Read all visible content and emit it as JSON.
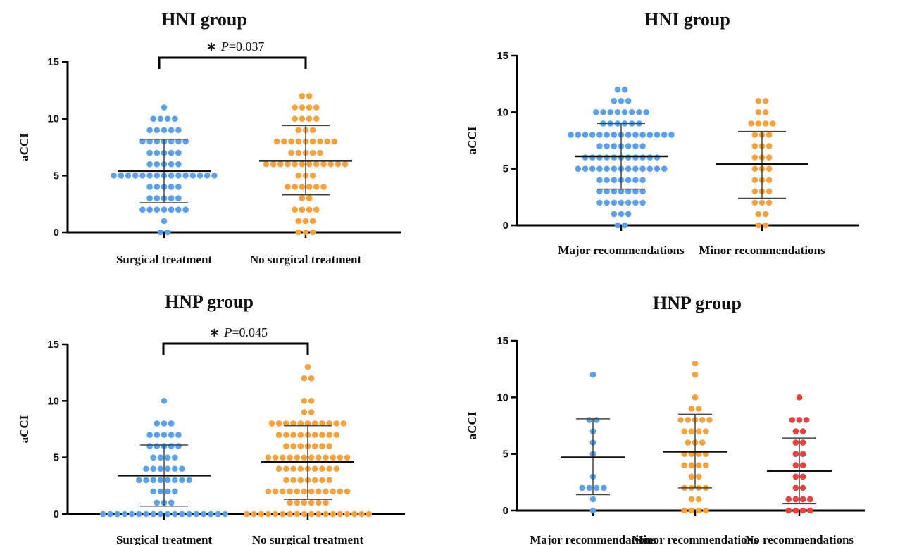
{
  "chart_data": [
    {
      "type": "scatter",
      "title": "HNI group",
      "ylabel": "aCCI",
      "ylim": [
        0,
        15
      ],
      "yticks": [
        "0",
        "5",
        "10",
        "15"
      ],
      "categories": [
        "Surgical treatment",
        "No surgical treatment"
      ],
      "annotation": {
        "star": "∗",
        "p_label": "P",
        "p_value": "=0.037"
      },
      "series": [
        {
          "color": "#5aa0ec",
          "mean": 5.4,
          "sd_low": 2.6,
          "sd_high": 8.2,
          "values": [
            0,
            0,
            1,
            2,
            2,
            2,
            2,
            2,
            2,
            2,
            3,
            3,
            3,
            3,
            3,
            4,
            4,
            4,
            4,
            4,
            5,
            5,
            5,
            5,
            5,
            5,
            5,
            5,
            5,
            5,
            5,
            5,
            5,
            5,
            5,
            6,
            6,
            6,
            6,
            6,
            7,
            7,
            7,
            7,
            7,
            8,
            8,
            8,
            8,
            8,
            8,
            8,
            9,
            9,
            9,
            9,
            9,
            10,
            10,
            10,
            10,
            11
          ]
        },
        {
          "color": "#f5a23e",
          "mean": 6.3,
          "sd_low": 3.3,
          "sd_high": 9.4,
          "values": [
            0,
            0,
            0,
            1,
            1,
            1,
            2,
            2,
            2,
            2,
            3,
            3,
            4,
            4,
            4,
            4,
            4,
            4,
            5,
            5,
            5,
            6,
            6,
            6,
            6,
            6,
            6,
            6,
            6,
            6,
            6,
            6,
            6,
            7,
            7,
            7,
            7,
            7,
            8,
            8,
            8,
            8,
            8,
            8,
            8,
            8,
            8,
            9,
            9,
            9,
            10,
            10,
            10,
            10,
            11,
            11,
            11,
            11,
            12,
            12
          ]
        }
      ]
    },
    {
      "type": "scatter",
      "title": "HNI group",
      "ylabel": "aCCI",
      "ylim": [
        0,
        15
      ],
      "yticks": [
        "0",
        "5",
        "10",
        "15"
      ],
      "categories": [
        "Major recommendations",
        "Minor recommendations"
      ],
      "series": [
        {
          "color": "#5aa0ec",
          "mean": 6.1,
          "sd_low": 3.2,
          "sd_high": 9.0,
          "values": [
            0,
            0,
            1,
            1,
            1,
            2,
            2,
            2,
            2,
            2,
            2,
            2,
            3,
            3,
            3,
            3,
            3,
            3,
            3,
            4,
            4,
            4,
            4,
            4,
            4,
            4,
            5,
            5,
            5,
            5,
            5,
            5,
            5,
            5,
            5,
            5,
            5,
            5,
            5,
            6,
            6,
            6,
            6,
            6,
            6,
            6,
            6,
            6,
            6,
            6,
            7,
            7,
            7,
            7,
            7,
            7,
            7,
            8,
            8,
            8,
            8,
            8,
            8,
            8,
            8,
            8,
            8,
            8,
            8,
            8,
            8,
            8,
            9,
            9,
            9,
            9,
            9,
            9,
            10,
            10,
            10,
            10,
            10,
            10,
            10,
            10,
            11,
            11,
            11,
            12,
            12
          ]
        },
        {
          "color": "#f5a23e",
          "mean": 5.4,
          "sd_low": 2.4,
          "sd_high": 8.3,
          "values": [
            0,
            0,
            1,
            1,
            2,
            2,
            2,
            3,
            3,
            3,
            4,
            4,
            4,
            5,
            5,
            5,
            6,
            6,
            6,
            7,
            7,
            7,
            8,
            8,
            8,
            9,
            9,
            9,
            9,
            10,
            10,
            11,
            11
          ]
        }
      ]
    },
    {
      "type": "scatter",
      "title": "HNP group",
      "ylabel": "aCCI",
      "ylim": [
        0,
        15
      ],
      "yticks": [
        "0",
        "5",
        "10",
        "15"
      ],
      "categories": [
        "Surgical treatment",
        "No surgical treatment"
      ],
      "annotation": {
        "star": "∗",
        "p_label": "P",
        "p_value": "=0.045"
      },
      "series": [
        {
          "color": "#5aa0ec",
          "mean": 3.4,
          "sd_low": 0.7,
          "sd_high": 6.1,
          "values": [
            0,
            0,
            0,
            0,
            0,
            0,
            0,
            0,
            0,
            0,
            0,
            0,
            0,
            0,
            0,
            0,
            0,
            0,
            1,
            1,
            1,
            2,
            2,
            2,
            2,
            3,
            3,
            3,
            3,
            3,
            3,
            3,
            3,
            4,
            4,
            4,
            4,
            4,
            4,
            5,
            5,
            5,
            5,
            6,
            6,
            6,
            6,
            6,
            7,
            7,
            7,
            7,
            7,
            8,
            8,
            8,
            10
          ]
        },
        {
          "color": "#f5a23e",
          "mean": 4.6,
          "sd_low": 1.3,
          "sd_high": 7.8,
          "values": [
            0,
            0,
            0,
            0,
            0,
            0,
            0,
            0,
            0,
            0,
            0,
            0,
            0,
            0,
            0,
            0,
            0,
            0,
            1,
            1,
            1,
            1,
            1,
            1,
            2,
            2,
            2,
            2,
            2,
            2,
            2,
            2,
            2,
            2,
            2,
            2,
            3,
            3,
            3,
            3,
            3,
            3,
            3,
            4,
            4,
            4,
            4,
            4,
            4,
            4,
            4,
            4,
            5,
            5,
            5,
            5,
            5,
            5,
            5,
            5,
            5,
            5,
            5,
            5,
            6,
            6,
            6,
            6,
            6,
            6,
            6,
            7,
            7,
            7,
            7,
            7,
            7,
            7,
            7,
            7,
            8,
            8,
            8,
            8,
            8,
            8,
            8,
            8,
            8,
            8,
            8,
            9,
            9,
            10,
            10,
            12,
            12,
            13
          ]
        }
      ]
    },
    {
      "type": "scatter",
      "title": "HNP group",
      "ylabel": "aCCI",
      "ylim": [
        0,
        15
      ],
      "yticks": [
        "0",
        "5",
        "10",
        "15"
      ],
      "categories": [
        "Major recommendations",
        "Minor recommendations",
        "No recommendations"
      ],
      "series": [
        {
          "color": "#5aa0ec",
          "mean": 4.7,
          "sd_low": 1.4,
          "sd_high": 8.1,
          "values": [
            0,
            1,
            2,
            2,
            2,
            2,
            3,
            5,
            6,
            7,
            8,
            8,
            12
          ]
        },
        {
          "color": "#f5a23e",
          "mean": 5.2,
          "sd_low": 2.0,
          "sd_high": 8.5,
          "values": [
            0,
            0,
            0,
            0,
            1,
            1,
            2,
            2,
            2,
            2,
            3,
            3,
            4,
            4,
            4,
            4,
            5,
            5,
            5,
            5,
            6,
            6,
            6,
            7,
            7,
            7,
            7,
            8,
            8,
            8,
            8,
            8,
            9,
            9,
            10,
            12,
            13
          ]
        },
        {
          "color": "#e8403a",
          "mean": 3.5,
          "sd_low": 0.6,
          "sd_high": 6.4,
          "values": [
            0,
            0,
            0,
            0,
            1,
            1,
            1,
            1,
            2,
            2,
            3,
            3,
            4,
            4,
            5,
            5,
            6,
            6,
            7,
            7,
            8,
            8,
            8,
            10
          ]
        }
      ]
    }
  ]
}
